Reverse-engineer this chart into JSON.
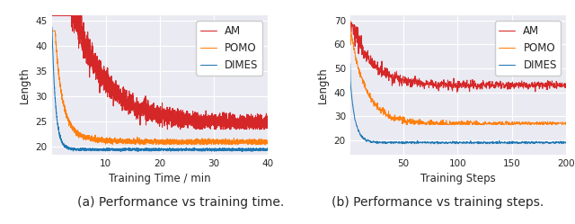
{
  "left": {
    "xlabel": "Training Time / min",
    "ylabel": "Length",
    "xlim": [
      0,
      40
    ],
    "ylim": [
      18.5,
      46
    ],
    "yticks": [
      20,
      25,
      30,
      35,
      40,
      45
    ],
    "xticks": [
      10,
      20,
      30,
      40
    ],
    "caption": "(a) Performance vs training time.",
    "am_color": "#d62728",
    "pomo_color": "#ff7f0e",
    "dimes_color": "#1f77b4"
  },
  "right": {
    "xlabel": "Training Steps",
    "ylabel": "Length",
    "xlim": [
      1,
      200
    ],
    "ylim": [
      14,
      72
    ],
    "yticks": [
      20,
      30,
      40,
      50,
      60,
      70
    ],
    "xticks": [
      50,
      100,
      150,
      200
    ],
    "caption": "(b) Performance vs training steps.",
    "am_color": "#d62728",
    "pomo_color": "#ff7f0e",
    "dimes_color": "#1f77b4"
  },
  "caption_fontsize": 10,
  "axes_facecolor": "#eaeaf2",
  "grid_color": "white",
  "legend_fontsize": 8.5
}
